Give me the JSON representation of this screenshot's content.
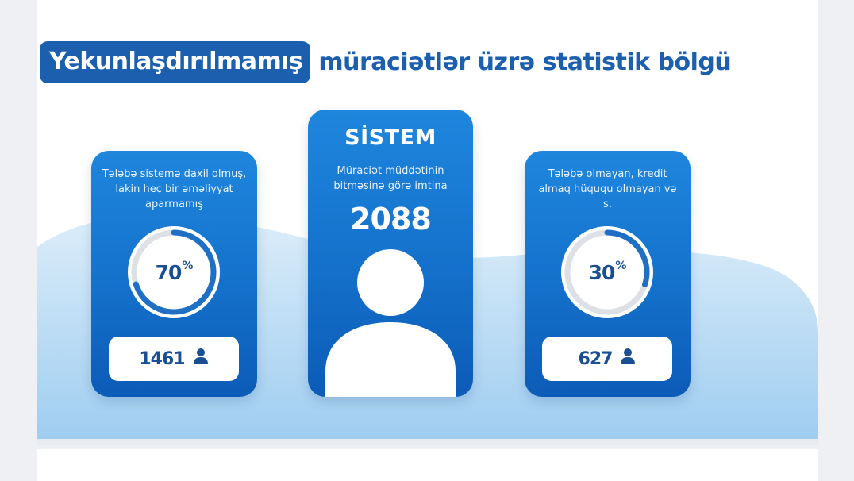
{
  "title": {
    "highlight": "Yekunlaşdırılmamış",
    "rest": "müraciətlər üzrə statistik bölgü"
  },
  "cards": {
    "left": {
      "description": "Tələbə sistemə daxil olmuş, lakin heç bir əməliyyat aparmamış",
      "percent_value": "70",
      "percent_sign": "%",
      "progress_fraction": 0.7,
      "count": "1461",
      "icon": "user-icon"
    },
    "center": {
      "heading": "SİSTEM",
      "description": "Müraciət müddətinin bitməsinə görə imtina",
      "count": "2088",
      "icon": "person-icon"
    },
    "right": {
      "description": "Tələbə olmayan, kredit almaq hüququ olmayan və s.",
      "percent_value": "30",
      "percent_sign": "%",
      "progress_fraction": 0.3,
      "count": "627",
      "icon": "user-icon"
    }
  },
  "colors": {
    "brand_blue": "#1b5fae",
    "card_blue": "#1674cf",
    "ring_progress": "#1f6fc4",
    "ring_track": "#dde1e6",
    "wave": "#cfe6f7"
  }
}
